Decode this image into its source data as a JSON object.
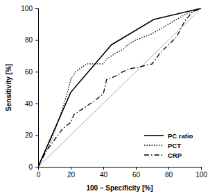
{
  "chart_data": {
    "type": "line",
    "x_label": "100 – Specificity [%]",
    "y_label": "Sensitivity [%]",
    "xlim": [
      0,
      100
    ],
    "ylim": [
      0,
      100
    ],
    "xticks": [
      0,
      20,
      40,
      60,
      80,
      100
    ],
    "yticks": [
      0,
      20,
      40,
      60,
      80,
      100
    ],
    "grid": false,
    "legend": "lower right",
    "series": [
      {
        "name": "PC ratio",
        "color": "#000000",
        "line_style": "solid",
        "x": [
          0,
          20,
          45,
          71,
          100
        ],
        "values": [
          0,
          47,
          77,
          93,
          100
        ]
      },
      {
        "name": "PCT",
        "color": "#000000",
        "line_style": "dotted",
        "x": [
          0,
          5,
          10,
          15,
          18,
          20,
          23,
          27,
          30,
          40,
          42,
          48,
          52,
          55,
          60,
          65,
          70,
          75,
          80,
          85,
          90,
          95,
          100
        ],
        "values": [
          0,
          10,
          22,
          37,
          47,
          55,
          60,
          63,
          65,
          65,
          68,
          72,
          74,
          77,
          80,
          82,
          84,
          87,
          90,
          93,
          96,
          98,
          100
        ]
      },
      {
        "name": "CRP",
        "color": "#000000",
        "line_style": "dashdot",
        "x": [
          0,
          5,
          10,
          15,
          20,
          22,
          28,
          35,
          40,
          42,
          47,
          52,
          57,
          62,
          70,
          75,
          80,
          85,
          90,
          95,
          100
        ],
        "values": [
          0,
          10,
          17,
          24,
          28,
          33,
          37,
          42,
          46,
          55,
          57,
          60,
          62,
          63,
          65,
          72,
          77,
          82,
          92,
          98,
          100
        ]
      }
    ]
  }
}
